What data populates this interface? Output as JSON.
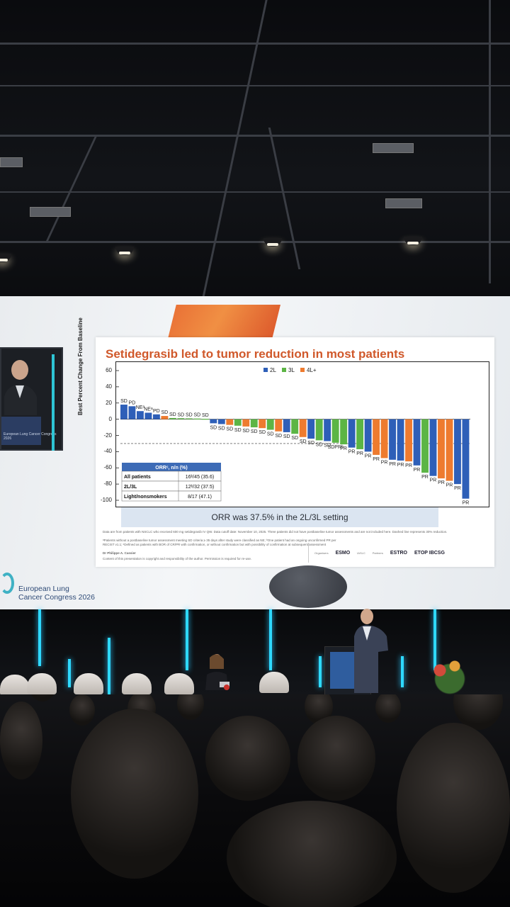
{
  "slide": {
    "title": "Setidegrasib led to tumor reduction in most patients",
    "y_axis_label": "Best Percent Change From Baseline",
    "orr_banner": "ORR was 37.5% in the 2L/3L setting",
    "footnote_1": "Data are from patients with NSCLC who received 600 mg setidegrasib IV QW. Data cutoff date: November 10, 2025. Three patients did not have postbaseline tumor assessments and are not included here. Dashed line represents 30% reduction.",
    "footnote_2": "ᵃPatients without a postbaseline tumor assessment meeting SD criteria ≥ 35 days after study were classified as NE; ᵇOne patient had an ongoing unconfirmed PR per RECIST v1.1; ᶜDefined as patients with BOR of CR/PR with confirmation, or without confirmation but with possibility of confirmation at subsequent assessment",
    "author": "Dr Philippe A. Cassier",
    "copyright": "Content of this presentation is copyright and responsibility of the author. Permission is required for re-use.",
    "organisers_label": "Organisers",
    "partners_label": "Partners",
    "organisers": [
      "ESMO",
      "IASLC"
    ],
    "partners": [
      "ESTRO",
      "ETOP IBCSG"
    ]
  },
  "table": {
    "header": "ORRᶜ, n/n (%)",
    "rows": [
      {
        "label": "All patients",
        "value": "16ᵇ/45 (35.6)"
      },
      {
        "label": "2L/3L",
        "value": "12ᵇ/32 (37.5)"
      },
      {
        "label": "Light/nonsmokers",
        "value": "8/17 (47.1)"
      }
    ]
  },
  "chart_data": {
    "type": "bar",
    "title": "Setidegrasib led to tumor reduction in most patients",
    "ylabel": "Best Percent Change From Baseline",
    "xlabel": "",
    "ylim": [
      -100,
      60
    ],
    "yticks": [
      60,
      40,
      20,
      0,
      -20,
      -40,
      -60,
      -80,
      -100
    ],
    "reference_line": -30,
    "legend": [
      {
        "name": "2L",
        "color": "#2e5fb8"
      },
      {
        "name": "3L",
        "color": "#5cb545"
      },
      {
        "name": "4L+",
        "color": "#ee7b2f"
      }
    ],
    "bars": [
      {
        "v": 18,
        "line": "2L",
        "label": "SD"
      },
      {
        "v": 16,
        "line": "2L",
        "label": "PD"
      },
      {
        "v": 10,
        "line": "2L",
        "label": "NEᵃ"
      },
      {
        "v": 8,
        "line": "2L",
        "label": "NEᵃ"
      },
      {
        "v": 6,
        "line": "2L",
        "label": "PD"
      },
      {
        "v": 4,
        "line": "4L+",
        "label": "SD"
      },
      {
        "v": 1.5,
        "line": "3L",
        "label": "SD"
      },
      {
        "v": 1.2,
        "line": "3L",
        "label": "SD"
      },
      {
        "v": 1,
        "line": "3L",
        "label": "SD"
      },
      {
        "v": 0.8,
        "line": "3L",
        "label": "SD"
      },
      {
        "v": 0.5,
        "line": "3L",
        "label": "SD"
      },
      {
        "v": -5,
        "line": "2L",
        "label": "SD"
      },
      {
        "v": -6,
        "line": "2L",
        "label": "SD"
      },
      {
        "v": -7,
        "line": "4L+",
        "label": "SD"
      },
      {
        "v": -8,
        "line": "3L",
        "label": "SD"
      },
      {
        "v": -9,
        "line": "4L+",
        "label": "SD"
      },
      {
        "v": -10,
        "line": "3L",
        "label": "SD"
      },
      {
        "v": -11,
        "line": "4L+",
        "label": "SD"
      },
      {
        "v": -13,
        "line": "3L",
        "label": "SD"
      },
      {
        "v": -15,
        "line": "4L+",
        "label": "SD"
      },
      {
        "v": -16,
        "line": "2L",
        "label": "SD"
      },
      {
        "v": -18,
        "line": "3L",
        "label": "SD"
      },
      {
        "v": -22,
        "line": "4L+",
        "label": "SD"
      },
      {
        "v": -24,
        "line": "2L",
        "label": "SD"
      },
      {
        "v": -26,
        "line": "3L",
        "label": "SD"
      },
      {
        "v": -27,
        "line": "2L",
        "label": "SD"
      },
      {
        "v": -29,
        "line": "3L",
        "label": "SDPRᵇ"
      },
      {
        "v": -31,
        "line": "3L",
        "label": "PR"
      },
      {
        "v": -35,
        "line": "2L",
        "label": "PR"
      },
      {
        "v": -37,
        "line": "3L",
        "label": "PR"
      },
      {
        "v": -40,
        "line": "2L",
        "label": "PR"
      },
      {
        "v": -44,
        "line": "4L+",
        "label": "PR"
      },
      {
        "v": -48,
        "line": "4L+",
        "label": "PR"
      },
      {
        "v": -50,
        "line": "2L",
        "label": "PR"
      },
      {
        "v": -51,
        "line": "2L",
        "label": "PR"
      },
      {
        "v": -52,
        "line": "4L+",
        "label": "PR"
      },
      {
        "v": -57,
        "line": "2L",
        "label": "PR"
      },
      {
        "v": -66,
        "line": "3L",
        "label": "PR"
      },
      {
        "v": -70,
        "line": "2L",
        "label": "PR"
      },
      {
        "v": -73,
        "line": "4L+",
        "label": "PR"
      },
      {
        "v": -76,
        "line": "4L+",
        "label": "PR"
      },
      {
        "v": -80,
        "line": "2L",
        "label": "PR"
      },
      {
        "v": -98,
        "line": "2L",
        "label": "PR"
      }
    ]
  },
  "pip": {
    "banner": "European Lung Cancer Congress 2026"
  },
  "congress": {
    "line1": "European Lung",
    "line2": "Cancer Congress 2026"
  },
  "colors": {
    "title": "#d0582a",
    "banner": "#dbe5f1",
    "led": "#2ed9ff"
  }
}
